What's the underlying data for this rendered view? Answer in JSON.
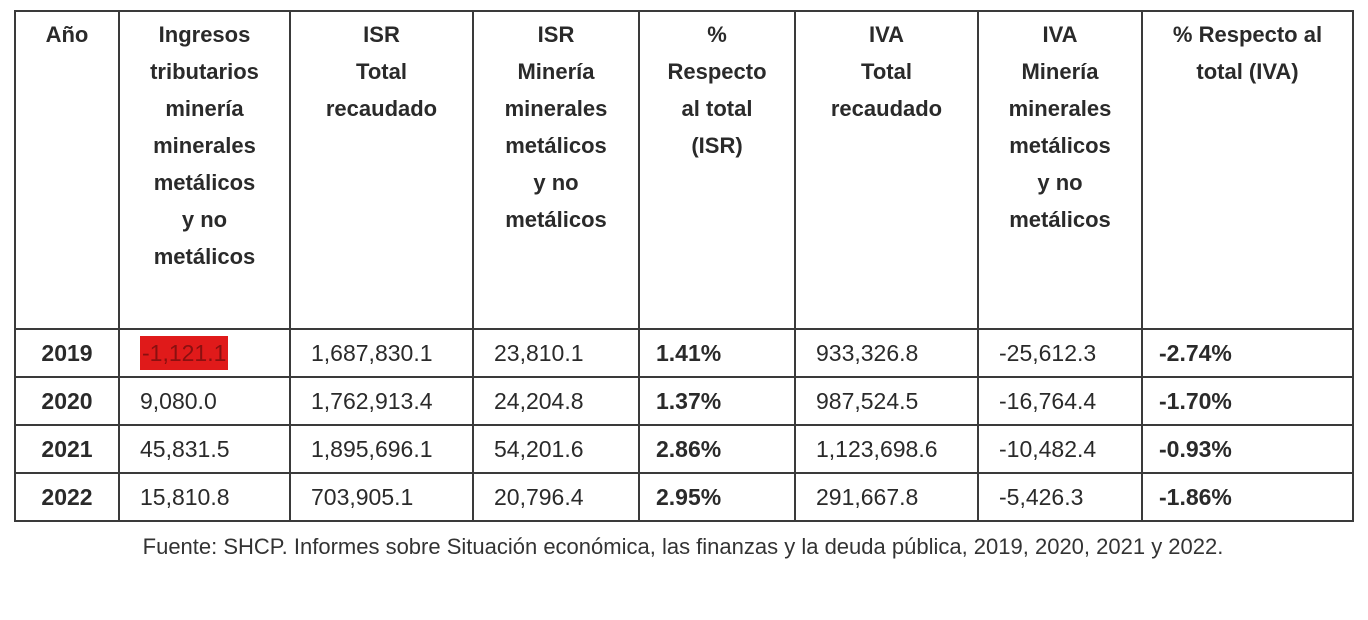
{
  "table": {
    "headers": [
      "Año",
      "Ingresos\ntributarios\nminería\nminerales\nmetálicos\ny no\nmetálicos",
      "ISR\nTotal\nrecaudado",
      "ISR\nMinería\nminerales\nmetálicos\ny no\nmetálicos",
      "%\nRespecto\nal total\n(ISR)",
      "IVA\nTotal\nrecaudado",
      "IVA\nMinería\nminerales\nmetálicos\ny no\nmetálicos",
      "% Respecto al\ntotal (IVA)"
    ],
    "rows": [
      {
        "year": "2019",
        "ingresos": "-1,121.1",
        "isr_total": "1,687,830.1",
        "isr_mineria": "23,810.1",
        "pct_isr": "1.41%",
        "iva_total": "933,326.8",
        "iva_mineria": "-25,612.3",
        "pct_iva": "-2.74%"
      },
      {
        "year": "2020",
        "ingresos": "9,080.0",
        "isr_total": "1,762,913.4",
        "isr_mineria": "24,204.8",
        "pct_isr": "1.37%",
        "iva_total": "987,524.5",
        "iva_mineria": "-16,764.4",
        "pct_iva": "-1.70%"
      },
      {
        "year": "2021",
        "ingresos": "45,831.5",
        "isr_total": "1,895,696.1",
        "isr_mineria": "54,201.6",
        "pct_isr": "2.86%",
        "iva_total": "1,123,698.6",
        "iva_mineria": "-10,482.4",
        "pct_iva": "-0.93%"
      },
      {
        "year": "2022",
        "ingresos": "15,810.8",
        "isr_total": "703,905.1",
        "isr_mineria": "20,796.4",
        "pct_isr": "2.95%",
        "iva_total": "291,667.8",
        "iva_mineria": "-5,426.3",
        "pct_iva": "-1.86%"
      }
    ]
  },
  "highlight_color": "#e01a1a",
  "source": "Fuente:  SHCP. Informes sobre Situación económica, las finanzas y la deuda pública, 2019, 2020, 2021 y 2022."
}
